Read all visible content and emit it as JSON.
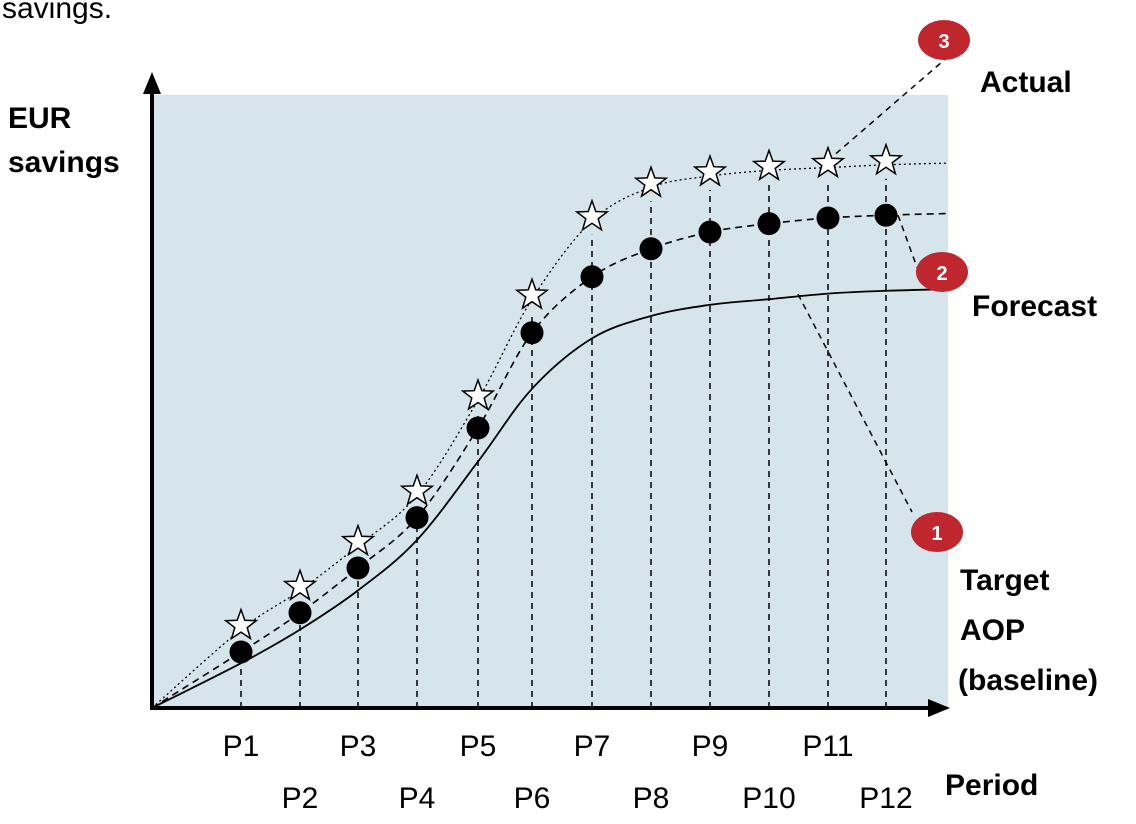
{
  "top_fragment": "savings.",
  "chart_data": {
    "type": "line",
    "xlabel": "Period",
    "ylabel": [
      "EUR",
      "savings"
    ],
    "categories": [
      "P1",
      "P2",
      "P3",
      "P4",
      "P5",
      "P6",
      "P7",
      "P8",
      "P9",
      "P10",
      "P11",
      "P12"
    ],
    "grid": false,
    "series": [
      {
        "name": "Target AOP (baseline)",
        "badge": "1",
        "style": "solid",
        "values": [
          8,
          14,
          21,
          30,
          44,
          57,
          66,
          70,
          72,
          73,
          74,
          74.5
        ]
      },
      {
        "name": "Forecast",
        "badge": "2",
        "style": "dashed",
        "marker": "circle",
        "values": [
          10,
          17,
          25,
          34,
          50,
          67,
          77,
          82,
          85,
          86.5,
          87.5,
          88
        ]
      },
      {
        "name": "Actual",
        "badge": "3",
        "style": "dotted",
        "marker": "star",
        "values": [
          14,
          21,
          29,
          38,
          55,
          73,
          87,
          93,
          95,
          96,
          96.5,
          97
        ]
      }
    ],
    "label_lines": {
      "actual": "Actual",
      "forecast": "Forecast",
      "target": [
        "Target",
        "AOP",
        "(baseline)"
      ]
    },
    "colors": {
      "plot_bg": "#d6e4ec",
      "badge": "#c0262d",
      "ink": "#000000"
    }
  }
}
